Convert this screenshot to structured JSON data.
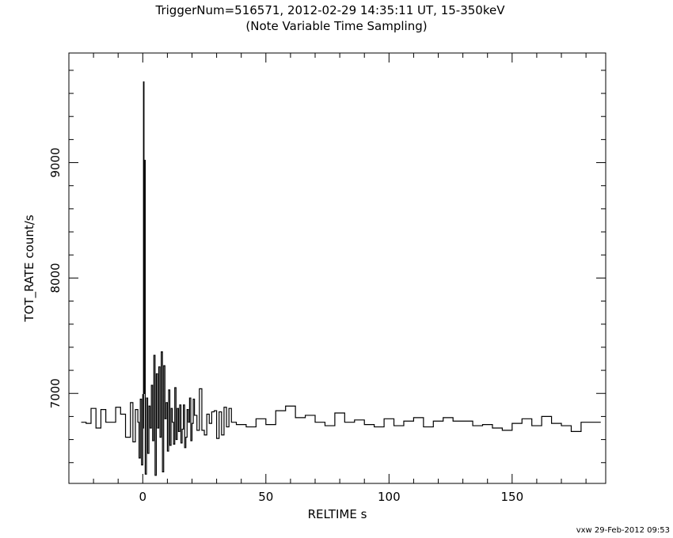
{
  "title_line1": "TriggerNum=516571, 2012-02-29 14:35:11 UT, 15-350keV",
  "title_line2": "(Note Variable Time Sampling)",
  "footer": "vxw 29-Feb-2012 09:53",
  "chart_data": {
    "type": "line",
    "style": "step",
    "xlabel": "RELTIME  s",
    "ylabel": "TOT_RATE  count/s",
    "xlim": [
      -30,
      188
    ],
    "ylim": [
      6220,
      9950
    ],
    "x_ticks": [
      0,
      50,
      100,
      150
    ],
    "x_tick_labels": [
      "0",
      "50",
      "100",
      "150"
    ],
    "y_ticks": [
      7000,
      8000,
      9000
    ],
    "y_tick_labels": [
      "7000",
      "8000",
      "9000"
    ],
    "x_minor_step": 10,
    "y_minor_step": 200,
    "series": [
      {
        "x": [
          -25,
          -23,
          -21,
          -19,
          -17,
          -15,
          -13,
          -11,
          -9,
          -7,
          -5,
          -4,
          -3,
          -2,
          -1.5,
          -1,
          -0.5,
          0,
          0.2,
          0.3,
          0.5,
          0.7,
          1,
          1.5,
          2,
          2.5,
          3,
          3.5,
          4,
          4.5,
          5,
          5.5,
          6,
          6.5,
          7,
          7.5,
          8,
          8.5,
          9,
          9.5,
          10,
          10.5,
          11,
          11.5,
          12,
          12.5,
          13,
          13.5,
          14,
          14.5,
          15,
          15.5,
          16,
          16.5,
          17,
          17.5,
          18,
          18.5,
          19,
          19.5,
          20,
          20.5,
          21,
          22,
          23,
          24,
          25,
          26,
          27,
          28,
          29,
          30,
          31,
          32,
          33,
          34,
          35,
          36,
          38,
          42,
          46,
          50,
          54,
          58,
          62,
          66,
          70,
          74,
          78,
          82,
          86,
          90,
          94,
          98,
          102,
          106,
          110,
          114,
          118,
          122,
          126,
          130,
          134,
          138,
          142,
          146,
          150,
          154,
          158,
          162,
          166,
          170,
          174,
          178,
          182
        ],
        "y": [
          6750,
          6740,
          6870,
          6700,
          6860,
          6750,
          6750,
          6880,
          6820,
          6620,
          6920,
          6580,
          6860,
          6750,
          6440,
          6950,
          6380,
          6990,
          6700,
          9700,
          7000,
          9020,
          6300,
          6960,
          6480,
          6890,
          6700,
          7070,
          6590,
          7330,
          6290,
          7170,
          6700,
          7230,
          6620,
          7360,
          6320,
          7240,
          6780,
          6920,
          6500,
          7030,
          6550,
          6870,
          6750,
          6560,
          7050,
          6600,
          6870,
          6670,
          6900,
          6570,
          6690,
          6900,
          6530,
          6620,
          6860,
          6750,
          6960,
          6590,
          6740,
          6950,
          6810,
          6680,
          7040,
          6680,
          6640,
          6820,
          6740,
          6840,
          6850,
          6610,
          6840,
          6640,
          6880,
          6710,
          6870,
          6750,
          6730,
          6710,
          6780,
          6730,
          6850,
          6890,
          6790,
          6810,
          6750,
          6720,
          6830,
          6750,
          6770,
          6730,
          6710,
          6780,
          6720,
          6760,
          6790,
          6710,
          6760,
          6790,
          6760,
          6760,
          6720,
          6730,
          6700,
          6680,
          6740,
          6780,
          6720,
          6800,
          6740,
          6720,
          6670,
          6750,
          6750
        ]
      }
    ]
  }
}
